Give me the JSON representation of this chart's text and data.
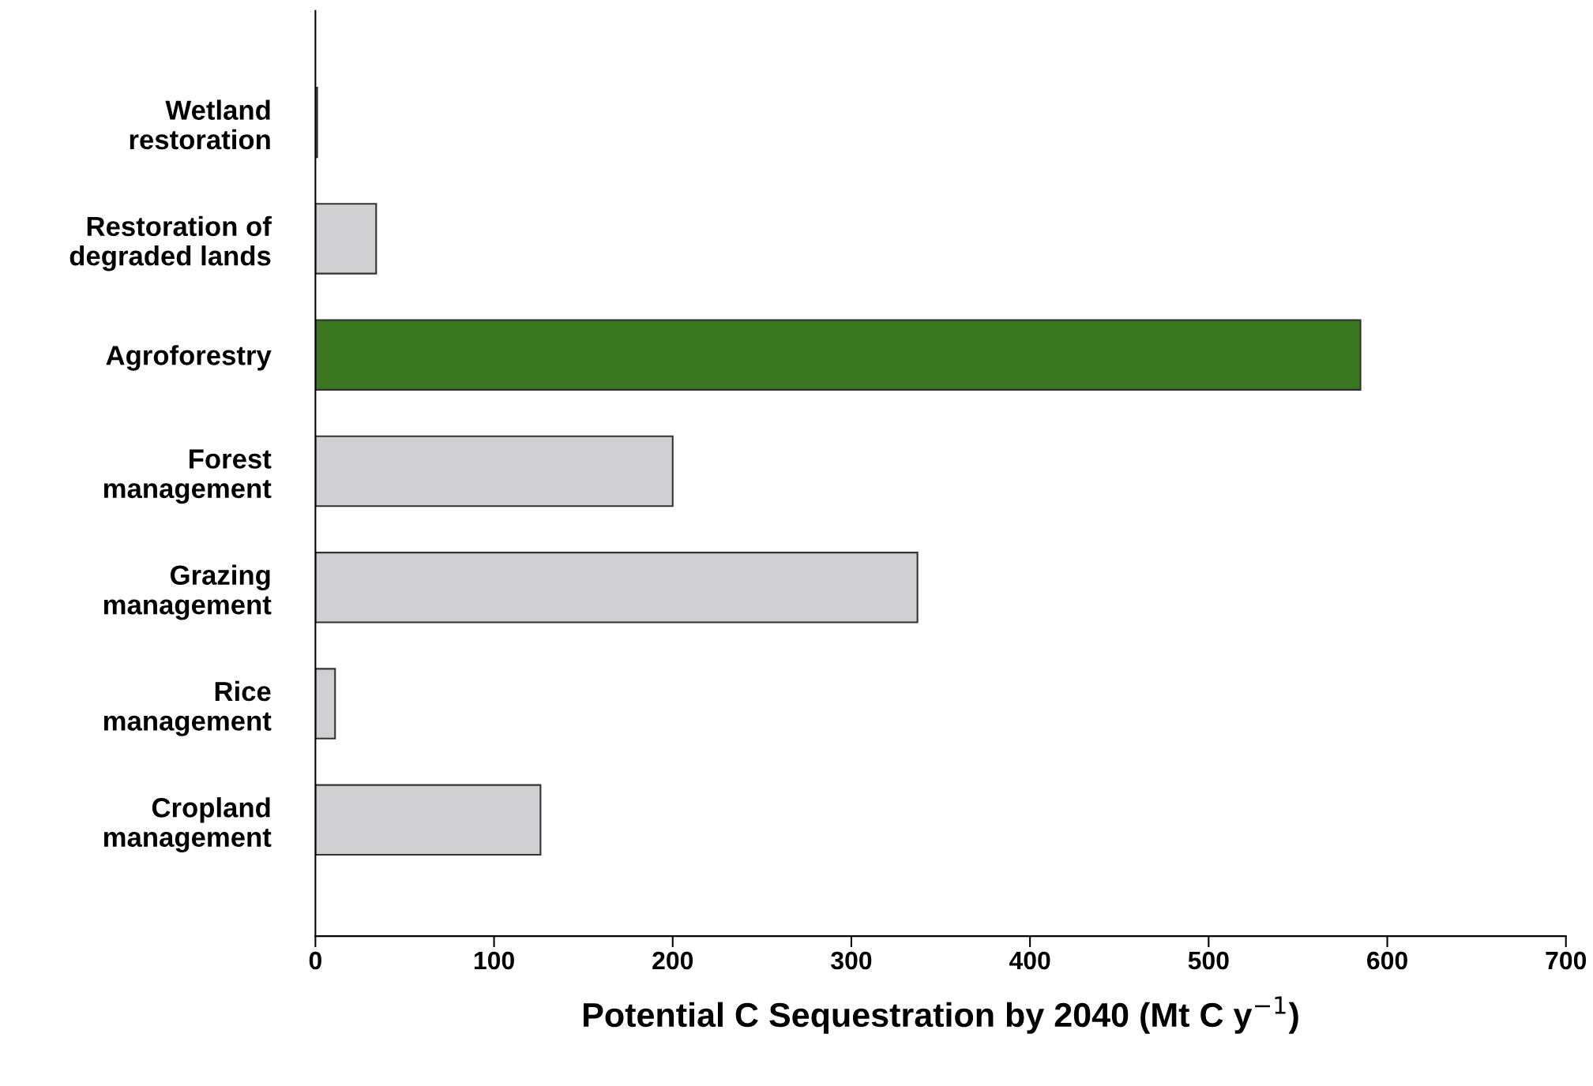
{
  "chart_data": {
    "type": "bar",
    "orientation": "horizontal",
    "categories": [
      "Wetland\nrestoration",
      "Restoration of\ndegraded lands",
      "Agroforestry",
      "Forest\nmanagement",
      "Grazing\nmanagement",
      "Rice\nmanagement",
      "Cropland\nmanagement"
    ],
    "values": [
      1,
      34,
      585,
      200,
      337,
      11,
      126
    ],
    "colors": [
      "#d0d0d2",
      "#d0d0d2",
      "#3a7520",
      "#d0d0d2",
      "#d0d0d2",
      "#d0d0d2",
      "#d0d0d2"
    ],
    "xlabel": "Potential C Sequestration by 2040 (Mt C y$^{−1}$)",
    "xlim": [
      0,
      700
    ],
    "xticks": [
      0,
      100,
      200,
      300,
      400,
      500,
      600,
      700
    ],
    "grid": false
  }
}
